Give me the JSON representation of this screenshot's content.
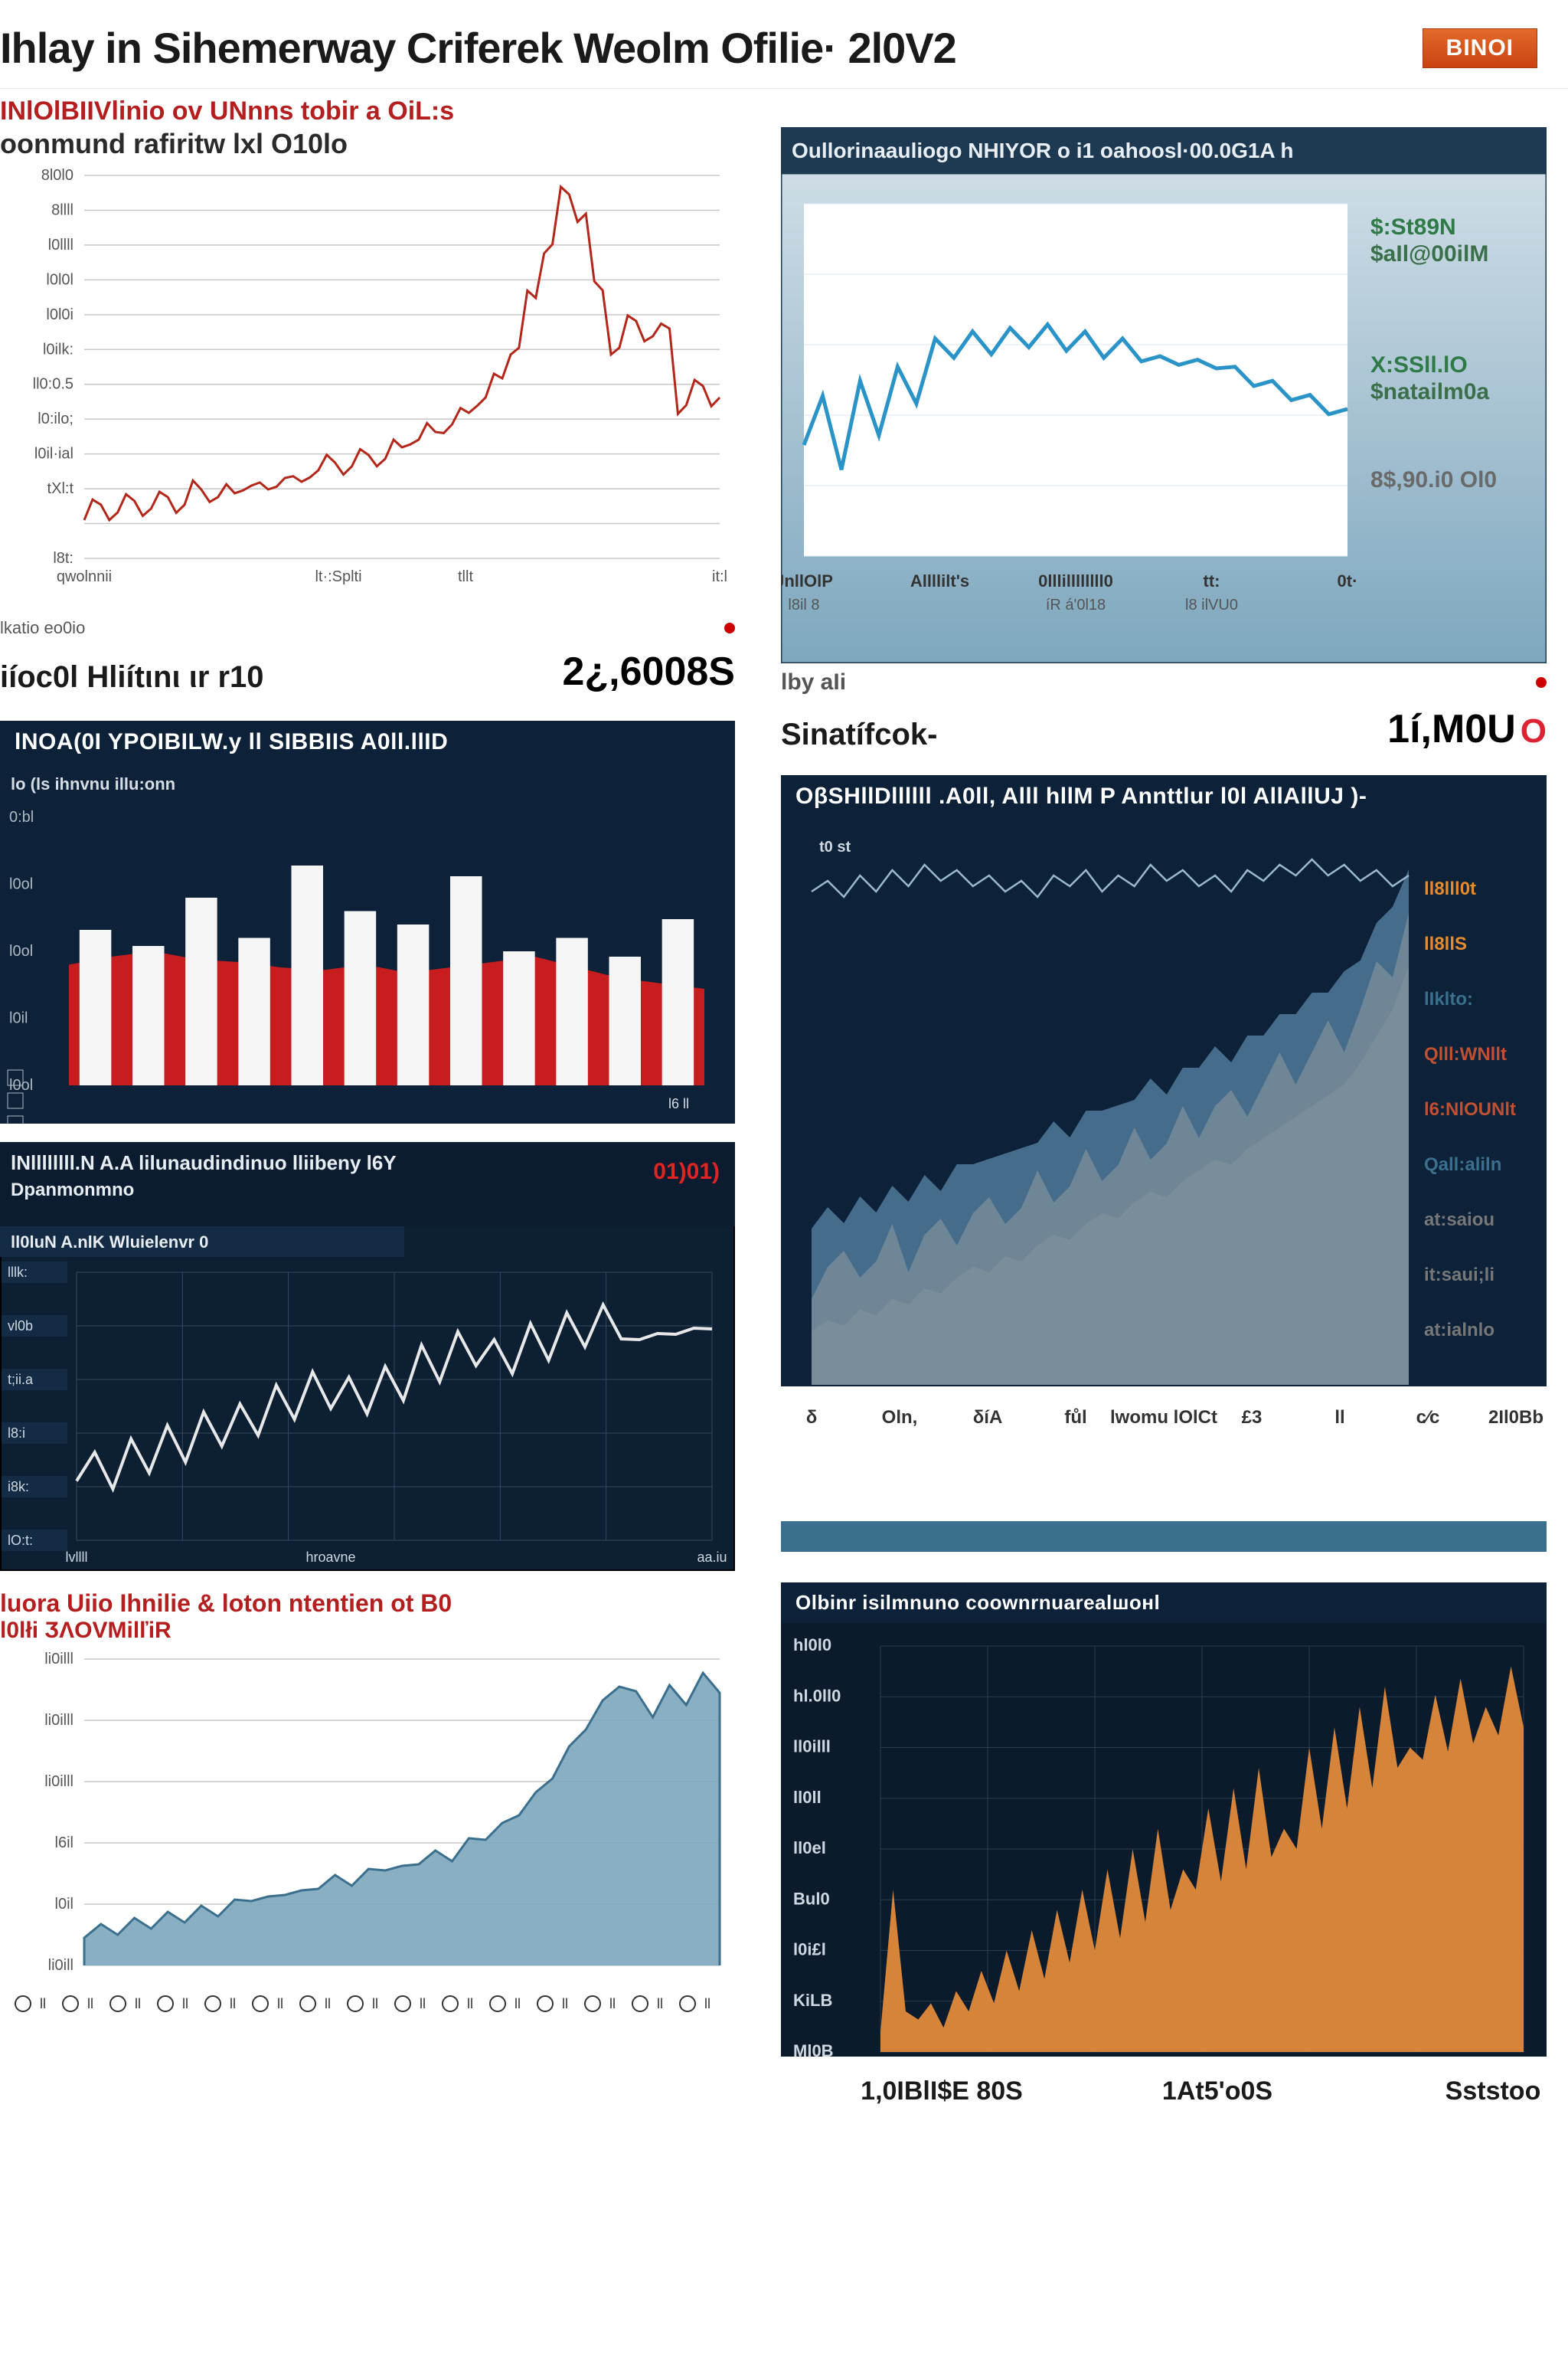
{
  "header": {
    "title": "Ihlay in Sihemerway Criferek Weolm Ofilie· 2l0V2",
    "button_label": "BINOI"
  },
  "chart1": {
    "sup_title": "INlOlBIIVlinio ov UNnns tobir a OiL:s",
    "sub_title": "oonmund rafiritw lxl O10lo",
    "type": "line",
    "line_color": "#b3261a",
    "background_color": "#ffffff",
    "grid_color": "#c8c8c8",
    "ylim": [
      0,
      100
    ],
    "ytick_count": 12,
    "y_tick_labels": [
      "8l0l0",
      "8llll",
      "l0llll",
      "l0l0l",
      "l0l0i",
      "l0ilk:",
      "ll0:0.5",
      "l0:ilo;",
      "l0il·ial",
      "tXl:t",
      "",
      "l8t:"
    ],
    "x_tick_labels": [
      "qwolnnii",
      "",
      "lt·:Splti",
      "tllt",
      "",
      "it:l"
    ],
    "series": [
      10,
      14,
      12,
      15,
      13,
      16,
      14,
      18,
      16,
      17,
      19,
      18,
      21,
      20,
      23,
      25,
      24,
      27,
      26,
      29,
      31,
      33,
      35,
      38,
      42,
      47,
      55,
      68,
      82,
      95,
      90,
      70,
      55,
      62,
      58,
      60,
      40,
      45,
      42
    ],
    "footer_left": "lkatio eo0io",
    "metric_label": "iíoc0l Hliítιnι ιr r10",
    "metric_value": "2¿,6008S"
  },
  "chart2": {
    "title": "Oullorinaauliogo NHIYOR o i1 oahoosl·00.0G1A h",
    "type": "line",
    "bg_top": "#cedde6",
    "bg_bottom": "#7ea7be",
    "plot_bg": "#ffffff",
    "line_color": "#2a93c7",
    "grid_color": "#dfeaf0",
    "ylim": [
      0,
      100
    ],
    "series": [
      35,
      42,
      28,
      48,
      36,
      52,
      45,
      60,
      58,
      62,
      59,
      63,
      61,
      64,
      60,
      62,
      58,
      60,
      57,
      55,
      56,
      54,
      55,
      52,
      50,
      48,
      46,
      44,
      42,
      40
    ],
    "right_labels": {
      "top1": "$:St89N",
      "top2": "$aIl@00ilM",
      "mid1": "X:SSll.lO",
      "mid2": "$natailm0a",
      "bot": "8$,90.i0 Ol0"
    },
    "right_label_colors": {
      "top": "#2f7a47",
      "mid": "#2f7a47",
      "bot": "#6a6a6a"
    },
    "x_tick_labels": [
      "JnllOlP",
      "Allllilt's",
      "0lllillllllll0",
      "tt:",
      "0t·"
    ],
    "x_sub_labels": [
      "l8il 8",
      "",
      "íR á'0l18",
      "l8 ilVU0",
      " "
    ],
    "footer_left": "lby aIi",
    "metric_label": "Sinatífcok-",
    "metric_value": "1í,M0U",
    "metric_suffix": "O"
  },
  "chart3": {
    "title": "lNOA(0I YPOIBILW.y ll SIBBIIS A0ll.llID ",
    "sub_label": "lo (ls ihnvnu illu:onn",
    "type": "bar+area",
    "bg": "#0d2238",
    "bar_color": "#f5f5f5",
    "area_color": "#d31e1e",
    "bars": [
      58,
      52,
      70,
      55,
      82,
      65,
      60,
      78,
      50,
      55,
      48,
      62
    ],
    "area": [
      45,
      48,
      50,
      47,
      46,
      44,
      43,
      45,
      42,
      44,
      46,
      48,
      44,
      40,
      38,
      36
    ],
    "y_tick_labels": [
      "0:bl",
      "l0ol",
      "l0ol",
      "l0il",
      "l0ol"
    ],
    "y_box_labels": [
      "■",
      "■",
      "■"
    ]
  },
  "chart4": {
    "title": "lNllllllll.N A.A lilunaudindinuo lliibeny l6Y",
    "sub_title": "Dpanmonmno",
    "badge": "01)01)",
    "box_label": "ll0luN A.nlK Wluielenvr 0",
    "type": "line",
    "bg": "#0c1f33",
    "grid_color": "#344a5e",
    "line_color": "#e8e8e8",
    "series": [
      25,
      30,
      22,
      35,
      28,
      40,
      32,
      45,
      38,
      48,
      42,
      55,
      48,
      60,
      52,
      58,
      50,
      62,
      55,
      70,
      62,
      75,
      68,
      72,
      65,
      78,
      70,
      82,
      75,
      85,
      78,
      72,
      80,
      74,
      82,
      76
    ],
    "y_tick_labels": [
      "lllk:",
      "vl0b",
      "t;ii.a",
      "l8:i",
      "i8k:",
      "lO:t:"
    ],
    "x_tick_labels": [
      "lvllll",
      "",
      "hroavne",
      "",
      "",
      "aa.iu"
    ]
  },
  "chart5": {
    "title": "OβSHllDllllll .A0ll, Alll hllM P Annttlur l0l AllAllUJ )-",
    "type": "area_double",
    "bg": "#0d2238",
    "area_top_color": "#5a86a8",
    "area_mid_color": "#d9a469",
    "area_bot_color": "#e9c77a",
    "top_line_color": "#9bb8ce",
    "small_label": "t0 st",
    "series_upper": [
      30,
      32,
      31,
      34,
      33,
      36,
      35,
      38,
      37,
      40,
      42,
      41,
      44,
      43,
      46,
      48,
      47,
      50,
      52,
      51,
      54,
      56,
      55,
      58,
      60,
      62,
      61,
      64,
      66,
      68,
      70,
      72,
      74,
      76,
      80,
      85,
      90,
      95
    ],
    "series_lower": [
      10,
      12,
      11,
      14,
      13,
      16,
      15,
      18,
      17,
      20,
      22,
      21,
      24,
      23,
      26,
      28,
      27,
      30,
      32,
      31,
      34,
      36,
      35,
      38,
      40,
      42,
      41,
      44,
      46,
      48,
      50,
      52,
      54,
      56,
      60,
      65,
      70,
      78
    ],
    "series_top_wiggle": [
      92,
      94,
      91,
      95,
      92,
      96,
      93,
      97,
      94,
      96,
      93,
      95,
      92,
      94,
      91,
      95,
      93,
      96,
      92,
      95,
      93,
      97,
      94,
      96,
      93,
      95,
      92,
      96,
      94,
      97,
      95,
      98,
      95,
      97,
      94,
      96,
      93,
      95
    ],
    "right_labels": [
      "ll8lll0t",
      "ll8llS",
      "lIklto:",
      "Qlll:WNllt",
      "l6:NlOUNlt",
      "Qall:aliln",
      "at:saiou",
      "it:saui;li",
      "at:ialnlo"
    ],
    "right_label_colors": [
      "#e38b2e",
      "#e38b2e",
      "#3b6f8e",
      "#c05030",
      "#c05030",
      "#3b6f8e",
      "#777",
      "#777",
      "#777"
    ],
    "x_tick_labels": [
      "δ",
      "Oln,",
      "δíA",
      "fůl",
      "lwomu lOlCt",
      "£3",
      "ll",
      "c∕c",
      "2Il0Bb"
    ]
  },
  "chart6": {
    "sup_title": "luora Uiio Ihnilie & loton ntentien ot B0",
    "sub_title": "l0lłi ӠΛOVMilľiR",
    "type": "area",
    "line_color": "#3b6f8e",
    "fill_color": "#7da6bd",
    "grid_color": "#c8c8c8",
    "series": [
      10,
      12,
      11,
      14,
      13,
      16,
      15,
      18,
      17,
      20,
      22,
      21,
      24,
      23,
      26,
      28,
      27,
      30,
      32,
      31,
      34,
      36,
      35,
      40,
      42,
      45,
      50,
      55,
      62,
      70,
      78,
      85,
      92,
      88,
      82,
      90,
      86,
      94,
      90
    ],
    "y_tick_labels": [
      "li0illl",
      "li0illl",
      "li0illl",
      "l6il",
      "l0il",
      "li0ill"
    ],
    "x_bullets": 15
  },
  "chart7": {
    "title": "Olbinr isilmnuno coownrnuarealшонl",
    "type": "area_spiky",
    "bg": "#0b1b2c",
    "grid_color": "#2a3d50",
    "fill_color": "#e08a3a",
    "series": [
      5,
      40,
      10,
      8,
      12,
      6,
      15,
      10,
      20,
      12,
      25,
      15,
      30,
      18,
      35,
      22,
      40,
      25,
      45,
      28,
      50,
      32,
      55,
      35,
      45,
      40,
      60,
      42,
      65,
      45,
      70,
      48,
      55,
      50,
      75,
      55,
      80,
      60,
      85,
      65,
      90,
      70,
      75,
      72,
      88,
      74,
      92,
      76,
      85,
      78,
      95,
      80
    ],
    "y_tick_labels": [
      "hl0l0",
      "hl.0ll0",
      "ll0illl",
      "ll0ll",
      "ll0el",
      "Bul0",
      "l0i£l",
      "KiLB",
      "Ml0B"
    ],
    "x_tick_labels": [
      "1,0IBlI$E 80S",
      "1At5'o0S",
      "Sststoo"
    ]
  }
}
